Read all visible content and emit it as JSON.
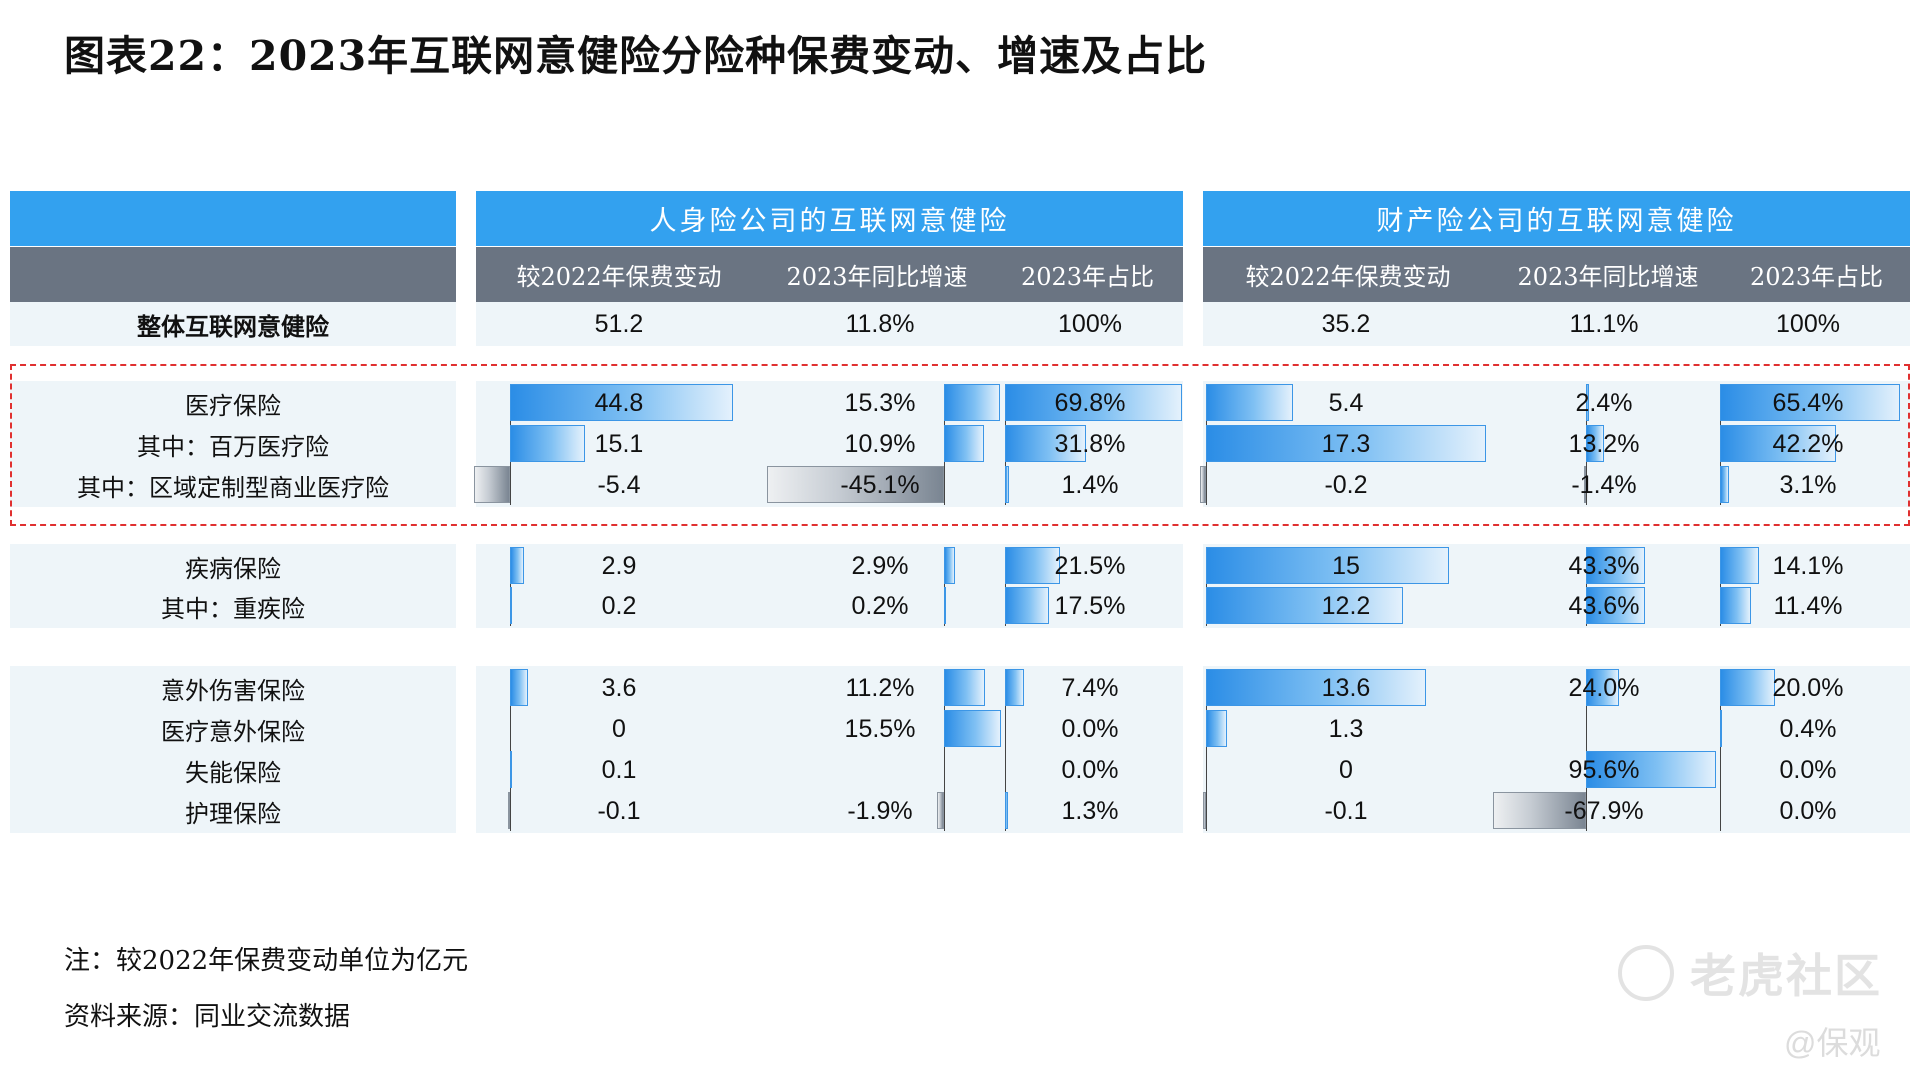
{
  "title": "图表22：2023年互联网意健险分险种保费变动、增速及占比",
  "notes": [
    "注：较2022年保费变动单位为亿元",
    "资料来源：同业交流数据"
  ],
  "watermark": {
    "main": "老虎社区",
    "sub": "@保观"
  },
  "colors": {
    "header_blue": "#33a1ef",
    "header_gray": "#6a7482",
    "band": "#eef5f9",
    "bar_pos": "#2b8de6",
    "bar_neg": "#7a8592",
    "highlight_box": "#e03030"
  },
  "chart_data": {
    "type": "table",
    "groups": [
      {
        "name": "人身险公司的互联网意健险",
        "columns": [
          "较2022年保费变动",
          "2023年同比增速",
          "2023年占比"
        ]
      },
      {
        "name": "财产险公司的互联网意健险",
        "columns": [
          "较2022年保费变动",
          "2023年同比增速",
          "2023年占比"
        ]
      }
    ],
    "rows": [
      {
        "label": "整体互联网意健险",
        "life": [
          "51.2",
          "11.8%",
          "100%"
        ],
        "pc": [
          "35.2",
          "11.1%",
          "100%"
        ]
      },
      {
        "label": "医疗保险",
        "life": [
          "44.8",
          "15.3%",
          "69.8%"
        ],
        "pc": [
          "5.4",
          "2.4%",
          "65.4%"
        ]
      },
      {
        "label": "其中：百万医疗险",
        "life": [
          "15.1",
          "10.9%",
          "31.8%"
        ],
        "pc": [
          "17.3",
          "13.2%",
          "42.2%"
        ]
      },
      {
        "label": "其中：区域定制型商业医疗险",
        "life": [
          "-5.4",
          "-45.1%",
          "1.4%"
        ],
        "pc": [
          "-0.2",
          "-1.4%",
          "3.1%"
        ]
      },
      {
        "label": "疾病保险",
        "life": [
          "2.9",
          "2.9%",
          "21.5%"
        ],
        "pc": [
          "15",
          "43.3%",
          "14.1%"
        ]
      },
      {
        "label": "其中：重疾险",
        "life": [
          "0.2",
          "0.2%",
          "17.5%"
        ],
        "pc": [
          "12.2",
          "43.6%",
          "11.4%"
        ]
      },
      {
        "label": "意外伤害保险",
        "life": [
          "3.6",
          "11.2%",
          "7.4%"
        ],
        "pc": [
          "13.6",
          "24.0%",
          "20.0%"
        ]
      },
      {
        "label": "医疗意外保险",
        "life": [
          "0",
          "15.5%",
          "0.0%"
        ],
        "pc": [
          "1.3",
          "",
          "0.4%"
        ]
      },
      {
        "label": "失能保险",
        "life": [
          "0.1",
          "",
          "0.0%"
        ],
        "pc": [
          "0",
          "95.6%",
          "0.0%"
        ]
      },
      {
        "label": "护理保险",
        "life": [
          "-0.1",
          "-1.9%",
          "1.3%"
        ],
        "pc": [
          "-0.1",
          "-67.9%",
          "0.0%"
        ]
      }
    ]
  }
}
